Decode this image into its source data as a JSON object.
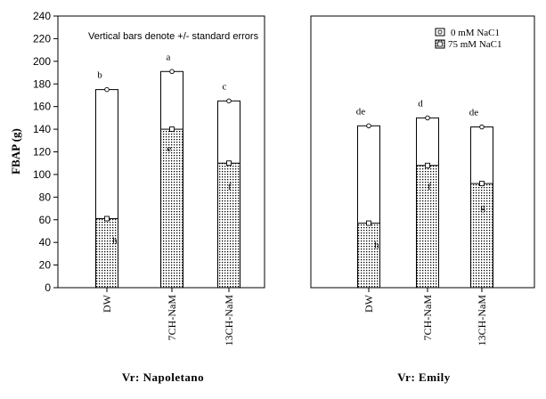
{
  "chart_data": [
    {
      "type": "bar",
      "panel_label": "Vr: Napoletano",
      "note": "Vertical bars denote +/- standard errors",
      "ylabel": "FBAP (g)",
      "ylim": [
        0,
        240
      ],
      "yticks": [
        0,
        20,
        40,
        60,
        80,
        100,
        120,
        140,
        160,
        180,
        200,
        220,
        240
      ],
      "categories": [
        "DW",
        "7CH-NaM",
        "13CH-NaM"
      ],
      "series": [
        {
          "name": "0  mM NaC1",
          "values": [
            175,
            191,
            165
          ],
          "errors": [
            1.2,
            1.2,
            1.2
          ],
          "letters": [
            "b",
            "a",
            "c"
          ],
          "fill": "#ffffff"
        },
        {
          "name": "75  mM NaC1",
          "values": [
            61,
            140,
            110
          ],
          "errors": [
            1.2,
            1.2,
            1.2
          ],
          "letters": [
            "h",
            "e",
            "f"
          ],
          "fill": "dots"
        }
      ]
    },
    {
      "type": "bar",
      "panel_label": "Vr: Emily",
      "ylim": [
        0,
        240
      ],
      "categories": [
        "DW",
        "7CH-NaM",
        "13CH-NaM"
      ],
      "legend": {
        "position": "top-right",
        "entries": [
          "0  mM NaC1",
          "75  mM NaC1"
        ]
      },
      "series": [
        {
          "name": "0  mM NaC1",
          "values": [
            143,
            150,
            142
          ],
          "errors": [
            1.2,
            1.2,
            1.2
          ],
          "letters": [
            "de",
            "d",
            "de"
          ],
          "fill": "#ffffff"
        },
        {
          "name": "75  mM NaC1",
          "values": [
            57,
            108,
            92
          ],
          "errors": [
            1.2,
            1.2,
            1.2
          ],
          "letters": [
            "h",
            "f",
            "g"
          ],
          "fill": "dots"
        }
      ]
    }
  ]
}
